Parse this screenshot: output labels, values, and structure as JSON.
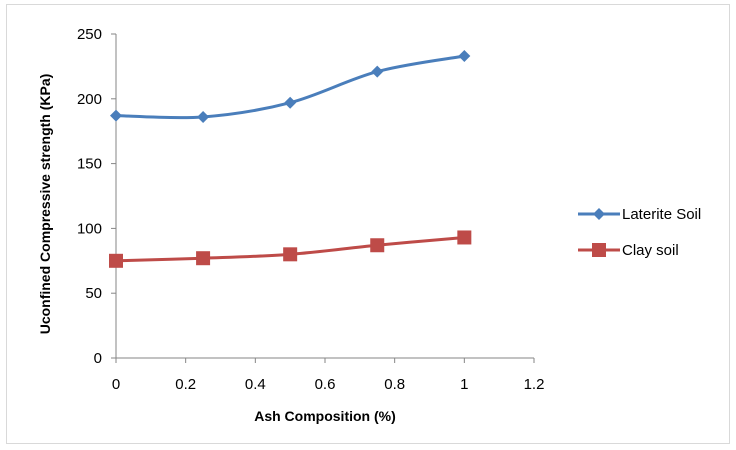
{
  "chart_data": {
    "type": "line",
    "title": "",
    "xlabel": "Ash Composition (%)",
    "ylabel": "Uconfined Compressive strength (KPa)",
    "xlim": [
      0,
      1.2
    ],
    "ylim": [
      0,
      250
    ],
    "x_ticks": [
      "0",
      "0.2",
      "0.4",
      "0.6",
      "0.8",
      "1",
      "1.2"
    ],
    "y_ticks": [
      "0",
      "50",
      "100",
      "150",
      "200",
      "250"
    ],
    "grid": false,
    "smooth": true,
    "legend_position": "right",
    "series": [
      {
        "name": "Laterite  Soil",
        "marker": "diamond",
        "color": "#4a7ebb",
        "x": [
          0,
          0.25,
          0.5,
          0.75,
          1
        ],
        "y": [
          187,
          186,
          197,
          221,
          233
        ]
      },
      {
        "name": "Clay soil",
        "marker": "square",
        "color": "#be4b48",
        "x": [
          0,
          0.25,
          0.5,
          0.75,
          1
        ],
        "y": [
          75,
          77,
          80,
          87,
          93
        ]
      }
    ]
  }
}
